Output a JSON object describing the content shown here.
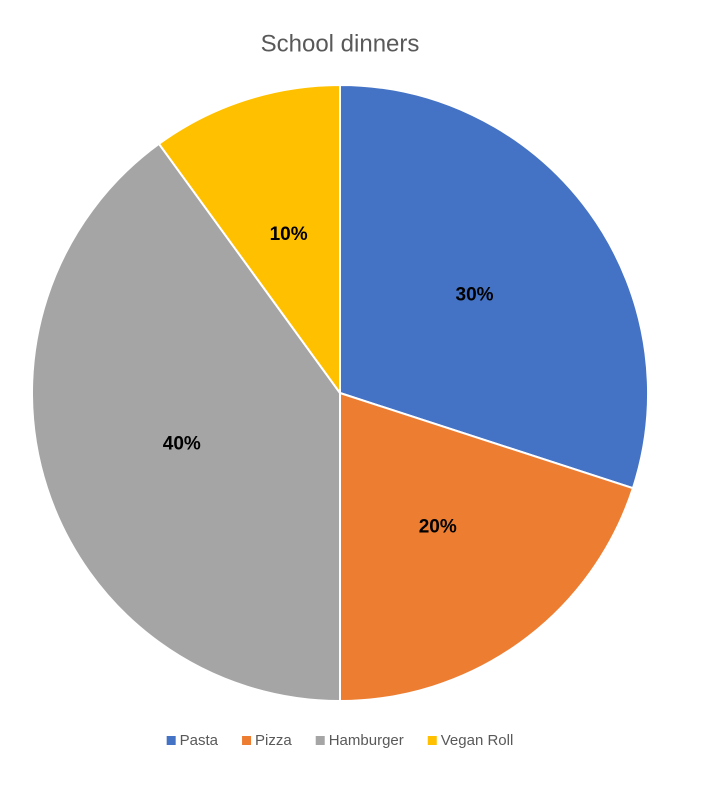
{
  "chart_data": {
    "type": "pie",
    "title": "School dinners",
    "categories": [
      "Pasta",
      "Pizza",
      "Hamburger",
      "Vegan Roll"
    ],
    "values": [
      30,
      20,
      40,
      10
    ],
    "value_labels": [
      "30%",
      "20%",
      "40%",
      "10%"
    ],
    "colors": [
      "#4472c4",
      "#ed7d31",
      "#a5a5a5",
      "#ffc000"
    ],
    "legend": "bottom"
  }
}
